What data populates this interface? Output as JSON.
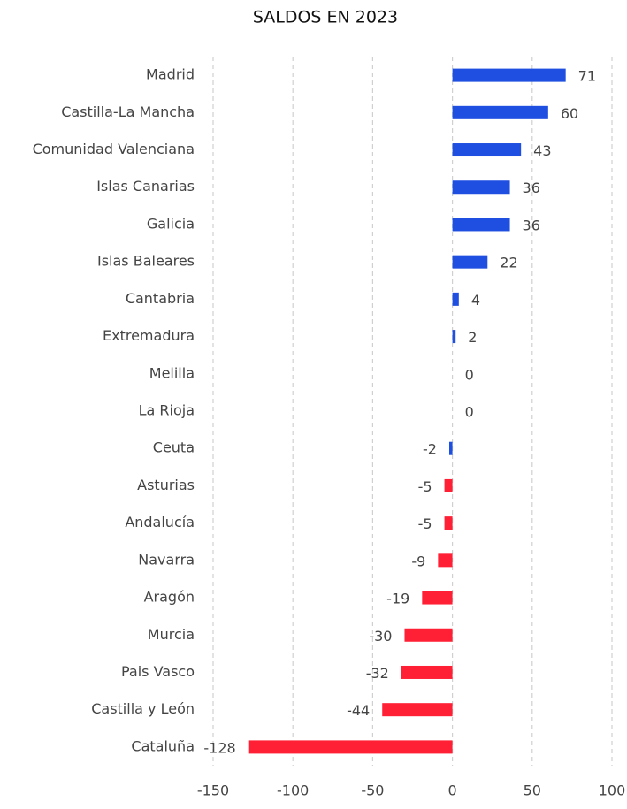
{
  "chart_data": {
    "type": "hbar",
    "title": "SALDOS EN 2023",
    "categories": [
      "Madrid",
      "Castilla-La Mancha",
      "Comunidad Valenciana",
      "Islas Canarias",
      "Galicia",
      "Islas Baleares",
      "Cantabria",
      "Extremadura",
      "Melilla",
      "La Rioja",
      "Ceuta",
      "Asturias",
      "Andalucía",
      "Navarra",
      "Aragón",
      "Murcia",
      "Pais Vasco",
      "Castilla y León",
      "Cataluña"
    ],
    "values": [
      71,
      60,
      43,
      36,
      36,
      22,
      4,
      2,
      0,
      0,
      -2,
      -5,
      -5,
      -9,
      -19,
      -30,
      -32,
      -44,
      -128
    ],
    "colors": [
      "#1f4fe0",
      "#1f4fe0",
      "#1f4fe0",
      "#1f4fe0",
      "#1f4fe0",
      "#1f4fe0",
      "#1f4fe0",
      "#1f4fe0",
      "#1f4fe0",
      "#1f4fe0",
      "#1f4fe0",
      "#ff2035",
      "#ff2035",
      "#ff2035",
      "#ff2035",
      "#ff2035",
      "#ff2035",
      "#ff2035",
      "#ff2035"
    ],
    "xlim": [
      -150,
      100
    ],
    "xticks": [
      -150,
      -100,
      -50,
      0,
      50,
      100
    ],
    "grid": true
  }
}
